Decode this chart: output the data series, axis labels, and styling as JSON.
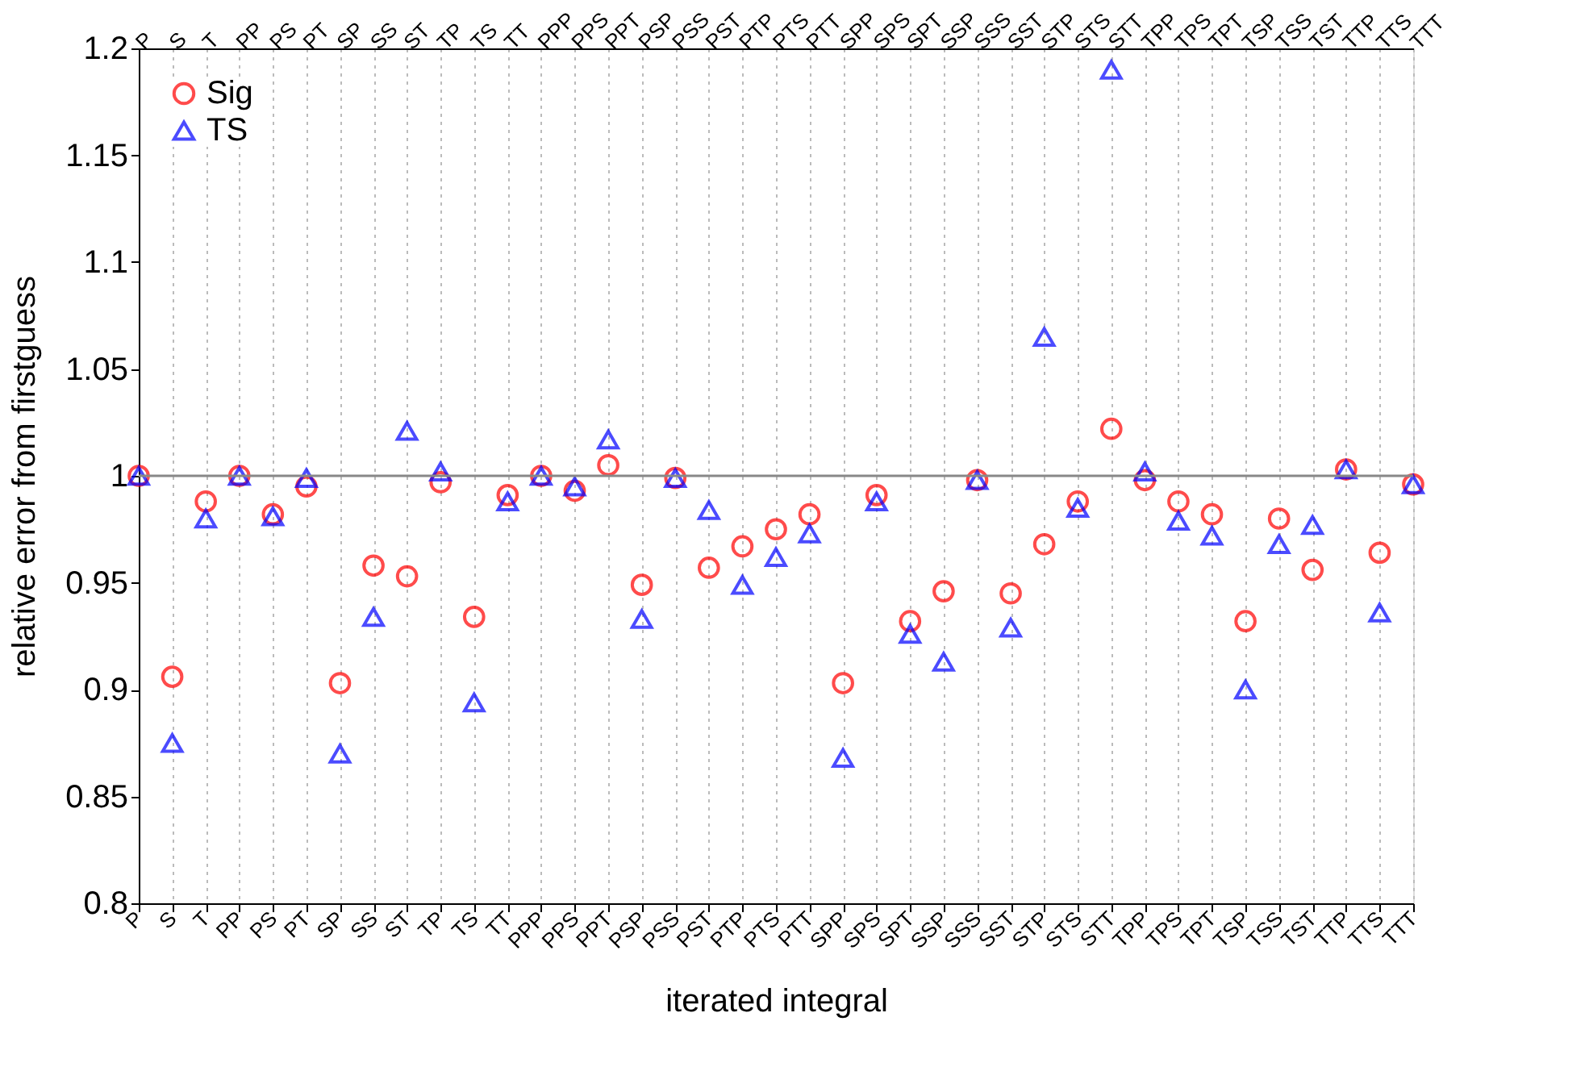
{
  "chart_data": {
    "type": "scatter",
    "xlabel": "iterated integral",
    "ylabel": "relative error from firstguess",
    "categories": [
      "P",
      "S",
      "T",
      "PP",
      "PS",
      "PT",
      "SP",
      "SS",
      "ST",
      "TP",
      "TS",
      "TT",
      "PPP",
      "PPS",
      "PPT",
      "PSP",
      "PSS",
      "PST",
      "PTP",
      "PTS",
      "PTT",
      "SPP",
      "SPS",
      "SPT",
      "SSP",
      "SSS",
      "SST",
      "STP",
      "STS",
      "STT",
      "TPP",
      "TPS",
      "TPT",
      "TSP",
      "TSS",
      "TST",
      "TTP",
      "TTS",
      "TTT"
    ],
    "series": [
      {
        "name": "Sig",
        "color": "#ff0000",
        "marker": "circle",
        "values": [
          1.0,
          0.906,
          0.988,
          1.0,
          0.982,
          0.995,
          0.903,
          0.958,
          0.953,
          0.997,
          0.934,
          0.991,
          1.0,
          0.993,
          1.005,
          0.949,
          0.999,
          0.957,
          0.967,
          0.975,
          0.982,
          0.903,
          0.991,
          0.932,
          0.946,
          0.998,
          0.945,
          0.968,
          0.988,
          1.022,
          0.998,
          0.988,
          0.982,
          0.932,
          0.98,
          0.956,
          1.003,
          0.964,
          0.996
        ]
      },
      {
        "name": "TS",
        "color": "#0000ff",
        "marker": "triangle",
        "values": [
          1.0,
          0.875,
          0.98,
          1.0,
          0.981,
          0.999,
          0.87,
          0.934,
          1.021,
          1.002,
          0.894,
          0.988,
          1.0,
          0.995,
          1.017,
          0.933,
          0.999,
          0.984,
          0.949,
          0.962,
          0.973,
          0.868,
          0.988,
          0.926,
          0.913,
          0.998,
          0.929,
          1.065,
          0.985,
          1.19,
          1.002,
          0.979,
          0.972,
          0.9,
          0.968,
          0.977,
          1.003,
          0.936,
          0.996
        ]
      }
    ],
    "ylim": [
      0.8,
      1.2
    ],
    "yticks": [
      0.8,
      0.85,
      0.9,
      0.95,
      1,
      1.05,
      1.1,
      1.15,
      1.2
    ],
    "ref_lines": [
      {
        "axis": "y",
        "value": 1,
        "color": "#888888"
      }
    ],
    "grid": "x",
    "legend": "top left"
  }
}
